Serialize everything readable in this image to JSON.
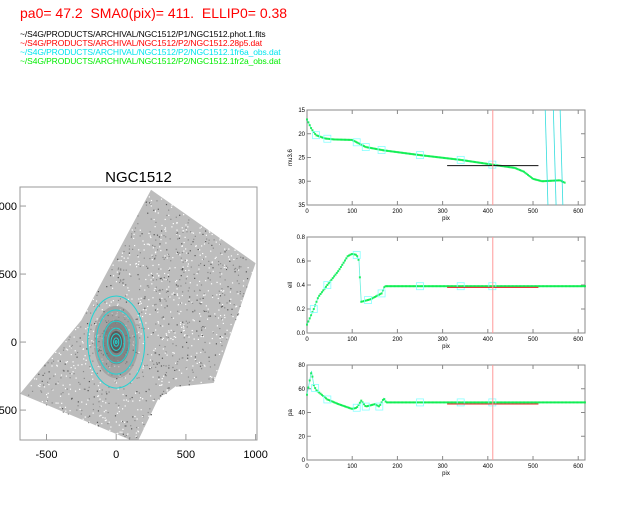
{
  "header": {
    "text": "pa0= 47.2  SMA0(pix)= 411.  ELLIP0= 0.38"
  },
  "files": [
    {
      "path": "~/S4G/PRODUCTS/ARCHIVAL/NGC1512/P1/NGC1512.phot.1.fits",
      "color": "#000000"
    },
    {
      "path": "~/S4G/PRODUCTS/ARCHIVAL/NGC1512/P2/NGC1512.28p5.dat",
      "color": "#ff0000"
    },
    {
      "path": "~/S4G/PRODUCTS/ARCHIVAL/NGC1512/P2/NGC1512.1fr6a_obs.dat",
      "color": "#00e5ee"
    },
    {
      "path": "~/S4G/PRODUCTS/ARCHIVAL/NGC1512/P2/NGC1512.1fr2a_obs.dat",
      "color": "#00ee00"
    }
  ],
  "chart_data": [
    {
      "type": "image",
      "title": "NGC1512",
      "xticks": [
        "-500",
        "0",
        "500",
        "1000"
      ],
      "yticks": [
        "-500",
        "0",
        "500",
        "1000"
      ],
      "xlim": [
        -690,
        1010
      ],
      "ylim": [
        -720,
        1140
      ],
      "ellipse_sma": [
        10,
        30,
        60,
        100,
        150,
        230,
        330
      ],
      "ellipse_ellip": 0.38,
      "ellipse_pa": 47.2
    },
    {
      "type": "line",
      "ylabel": "mu3.6",
      "xlabel": "pix",
      "xlim": [
        0,
        615
      ],
      "ylim": [
        35,
        15
      ],
      "xticks": [
        "0",
        "100",
        "200",
        "300",
        "400",
        "500",
        "600"
      ],
      "yticks": [
        "15",
        "20",
        "25",
        "30",
        "35"
      ],
      "series": [
        {
          "name": "1fr2a_obs",
          "color": "#00ee44",
          "x": [
            0,
            10,
            20,
            40,
            60,
            100,
            110,
            130,
            170,
            250,
            340,
            410,
            460,
            480,
            500,
            520,
            560,
            570
          ],
          "y": [
            17,
            19,
            20.3,
            21,
            21.2,
            21.3,
            21.8,
            22.8,
            23.5,
            24.5,
            25.5,
            26.5,
            27.2,
            28,
            29.5,
            30,
            29.8,
            30.3
          ]
        }
      ],
      "markers_x": [
        20,
        45,
        110,
        130,
        165,
        250,
        340,
        410
      ],
      "reference_line": {
        "x": [
          310,
          512
        ],
        "y": 26.7
      },
      "sma0": 411
    },
    {
      "type": "line",
      "ylabel": "ell",
      "xlabel": "pix",
      "xlim": [
        0,
        615
      ],
      "ylim": [
        0,
        0.8
      ],
      "xticks": [
        "0",
        "100",
        "200",
        "300",
        "400",
        "500",
        "600"
      ],
      "yticks": [
        "0.0",
        "0.2",
        "0.4",
        "0.6",
        "0.8"
      ],
      "series": [
        {
          "name": "1fr2a_obs",
          "color": "#00ee44",
          "x": [
            0,
            15,
            25,
            45,
            70,
            90,
            100,
            110,
            115,
            120,
            140,
            165,
            172,
            615
          ],
          "y": [
            0.07,
            0.2,
            0.3,
            0.4,
            0.52,
            0.64,
            0.66,
            0.65,
            0.6,
            0.26,
            0.28,
            0.33,
            0.39,
            0.39
          ]
        }
      ],
      "markers_x": [
        15,
        45,
        110,
        135,
        165,
        250,
        340,
        410
      ],
      "reference_line": {
        "x": [
          310,
          512
        ],
        "y": 0.38
      },
      "sma0": 411
    },
    {
      "type": "line",
      "ylabel": "pa",
      "xlabel": "pix",
      "xlim": [
        0,
        615
      ],
      "ylim": [
        0,
        80
      ],
      "xticks": [
        "0",
        "100",
        "200",
        "300",
        "400",
        "500",
        "600"
      ],
      "yticks": [
        "0",
        "20",
        "40",
        "60",
        "80"
      ],
      "series": [
        {
          "name": "1fr2a_obs",
          "color": "#00ee44",
          "x": [
            0,
            10,
            15,
            20,
            45,
            70,
            100,
            110,
            120,
            130,
            150,
            160,
            170,
            175,
            615
          ],
          "y": [
            55,
            75,
            63,
            59,
            51,
            47,
            43,
            44,
            50,
            45,
            47,
            45,
            52,
            48.5,
            48.5
          ]
        }
      ],
      "markers_x": [
        18,
        45,
        110,
        130,
        160,
        250,
        340,
        410
      ],
      "reference_line": {
        "x": [
          310,
          512
        ],
        "y": 47.2
      },
      "sma0": 411
    }
  ]
}
